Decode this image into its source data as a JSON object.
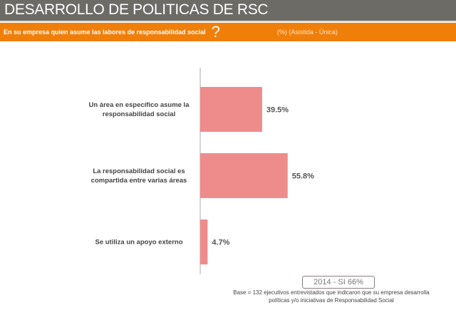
{
  "header": {
    "title": "DESARROLLO DE POLITICAS DE RSC",
    "question": "En su empresa quien asume las labores de responsabilidad social",
    "question_mark": "?",
    "note": "(%) (Asistida - Única)"
  },
  "chart_data": {
    "type": "bar",
    "orientation": "horizontal",
    "categories": [
      [
        "Un área en específico asume la",
        "responsabilidad social"
      ],
      [
        "La responsabilidad social es",
        "compartida entre varias áreas"
      ],
      [
        "Se utiliza un apoyo externo"
      ]
    ],
    "values": [
      39.5,
      55.8,
      4.7
    ],
    "value_labels": [
      "39.5%",
      "55.8%",
      "4.7%"
    ],
    "xlim": [
      0,
      100
    ],
    "bar_color": "#ee8c8c",
    "grid": false
  },
  "footer": {
    "badge": "2014 - SI 66%",
    "base_line1": "Base = 132 ejecutivos entrevistados que indicaron que su empresa desarrolla",
    "base_line2": "políticas y/o iniciativas de Responsabilidad Social"
  }
}
